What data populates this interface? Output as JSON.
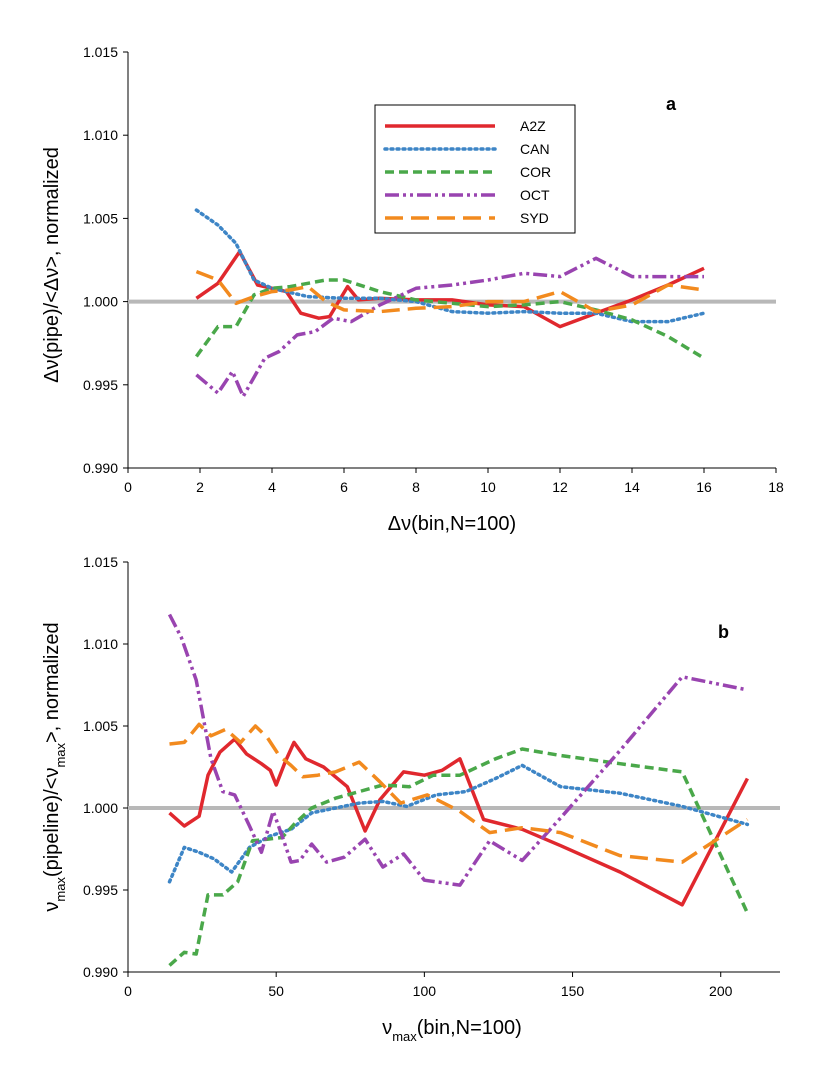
{
  "chart_data": [
    {
      "type": "line",
      "panel_label": "a",
      "xlabel": "Δν(bin,N=100)",
      "ylabel": "Δν(pipe)/<Δν>, normalized",
      "xlim": [
        0,
        18
      ],
      "ylim": [
        0.99,
        1.015
      ],
      "xticks": [
        "0",
        "2",
        "4",
        "6",
        "8",
        "10",
        "12",
        "14",
        "16",
        "18"
      ],
      "yticks": [
        "0.990",
        "0.995",
        "1.000",
        "1.005",
        "1.010",
        "1.015"
      ],
      "reference_line": 1.0,
      "legend_position": "top-center",
      "series": [
        {
          "name": "A2Z",
          "color": "#e0282e",
          "dash": "solid",
          "x": [
            1.9,
            2.5,
            3.1,
            3.6,
            4.4,
            4.8,
            5.3,
            5.6,
            6.1,
            6.4,
            7,
            8,
            9,
            10,
            11,
            12,
            13,
            14,
            15,
            16
          ],
          "y": [
            1.0002,
            1.0011,
            1.003,
            1.001,
            1.0006,
            0.9993,
            0.999,
            0.9991,
            1.0009,
            1.0001,
            1.0002,
            1.0001,
            1.0001,
            0.9998,
            0.9997,
            0.9985,
            0.9993,
            1.0001,
            1.001,
            1.002
          ]
        },
        {
          "name": "CAN",
          "color": "#3d85c6",
          "dash": "dot",
          "x": [
            1.9,
            2.5,
            3,
            3.5,
            4,
            5,
            6,
            7,
            8,
            9,
            10,
            11,
            12,
            13,
            14,
            15,
            16
          ],
          "y": [
            1.0055,
            1.0046,
            1.0035,
            1.0013,
            1.0008,
            1.0003,
            1.0002,
            1.0002,
            1.0,
            0.9994,
            0.9993,
            0.9994,
            0.9993,
            0.9993,
            0.9988,
            0.9988,
            0.9993
          ]
        },
        {
          "name": "COR",
          "color": "#4aa84a",
          "dash": "dash",
          "x": [
            1.9,
            2.5,
            3,
            3.5,
            4,
            4.5,
            5,
            5.5,
            6,
            7,
            8,
            9,
            10,
            11,
            12,
            13,
            14,
            15,
            16
          ],
          "y": [
            0.9967,
            0.9985,
            0.9985,
            1.0004,
            1.0008,
            1.0009,
            1.0011,
            1.0013,
            1.0013,
            1.0006,
            1.0001,
            0.9999,
            0.9997,
            0.9998,
            1.0,
            0.9995,
            0.9989,
            0.9979,
            0.9966
          ]
        },
        {
          "name": "OCT",
          "color": "#9944b0",
          "dash": "dashdotdot",
          "x": [
            1.9,
            2.5,
            2.9,
            3.2,
            3.8,
            4.2,
            4.7,
            5.2,
            5.7,
            6.2,
            7,
            8,
            9,
            10,
            11,
            12,
            13,
            14,
            15,
            16
          ],
          "y": [
            0.9956,
            0.9945,
            0.9958,
            0.9943,
            0.9966,
            0.997,
            0.998,
            0.9982,
            0.999,
            0.9988,
            0.9998,
            1.0008,
            1.001,
            1.0013,
            1.0017,
            1.0015,
            1.0026,
            1.0015,
            1.0015,
            1.0015
          ]
        },
        {
          "name": "SYD",
          "color": "#f28a1e",
          "dash": "longdash",
          "x": [
            1.9,
            2.5,
            3,
            3.5,
            4,
            4.5,
            5,
            5.5,
            6,
            7,
            8,
            9,
            10,
            11,
            12,
            13,
            14,
            15,
            16
          ],
          "y": [
            1.0018,
            1.0013,
            0.9999,
            1.0003,
            1.0006,
            1.0007,
            1.0009,
            1.0,
            0.9995,
            0.9994,
            0.9996,
            0.9997,
            1.0,
            1.0,
            1.0006,
            0.9994,
            0.9998,
            1.001,
            1.0007
          ]
        }
      ]
    },
    {
      "type": "line",
      "panel_label": "b",
      "xlabel_main": "ν",
      "xlabel_sub": "max",
      "xlabel_rest": "(bin,N=100)",
      "ylabel_pre": "ν",
      "ylabel_sub1": "max",
      "ylabel_mid": "(pipeline)/<ν",
      "ylabel_sub2": "max",
      "ylabel_post": ">, normalized",
      "xlim": [
        0,
        220
      ],
      "ylim": [
        0.99,
        1.015
      ],
      "xticks": [
        "0",
        "50",
        "100",
        "150",
        "200"
      ],
      "yticks": [
        "0.990",
        "0.995",
        "1.000",
        "1.005",
        "1.010",
        "1.015"
      ],
      "reference_line": 1.0,
      "series": [
        {
          "name": "A2Z",
          "color": "#e0282e",
          "dash": "solid",
          "x": [
            14,
            19,
            24,
            27,
            31,
            36,
            40,
            45,
            48,
            50,
            53,
            56,
            60,
            66,
            74,
            80,
            85,
            93,
            100,
            106,
            112,
            120,
            133,
            146,
            166,
            187,
            209
          ],
          "y": [
            0.9997,
            0.9989,
            0.9995,
            1.002,
            1.0034,
            1.0042,
            1.0033,
            1.0027,
            1.0023,
            1.0014,
            1.0028,
            1.004,
            1.003,
            1.0025,
            1.0013,
            0.9986,
            1.0005,
            1.0022,
            1.002,
            1.0023,
            1.003,
            0.9993,
            0.9987,
            0.9977,
            0.9961,
            0.9941,
            1.0018
          ]
        },
        {
          "name": "CAN",
          "color": "#3d85c6",
          "dash": "dot",
          "x": [
            14,
            19,
            24,
            29,
            35,
            41,
            48,
            55,
            62,
            70,
            78,
            86,
            94,
            104,
            114,
            124,
            133,
            146,
            166,
            187,
            209
          ],
          "y": [
            0.9955,
            0.9976,
            0.9973,
            0.9969,
            0.9961,
            0.9976,
            0.9983,
            0.9987,
            0.9997,
            1.0,
            1.0003,
            1.0004,
            1.0001,
            1.0008,
            1.001,
            1.0018,
            1.0026,
            1.0013,
            1.0009,
            1.0001,
            0.999
          ]
        },
        {
          "name": "COR",
          "color": "#4aa84a",
          "dash": "dash",
          "x": [
            14,
            19,
            23,
            27,
            32,
            37,
            42,
            47,
            52,
            56,
            62,
            70,
            78,
            86,
            95,
            103,
            112,
            124,
            133,
            146,
            166,
            187,
            209
          ],
          "y": [
            0.9904,
            0.9912,
            0.9911,
            0.9947,
            0.9947,
            0.9955,
            0.998,
            0.9981,
            0.9982,
            0.999,
            1.0,
            1.0006,
            1.001,
            1.0014,
            1.0013,
            1.002,
            1.002,
            1.003,
            1.0036,
            1.0032,
            1.0027,
            1.0022,
            0.9936
          ]
        },
        {
          "name": "OCT",
          "color": "#9944b0",
          "dash": "dashdotdot",
          "x": [
            14,
            18,
            23,
            28,
            32,
            36,
            41,
            45,
            49,
            52,
            55,
            58,
            62,
            67,
            73,
            80,
            86,
            93,
            100,
            112,
            122,
            133,
            146,
            166,
            187,
            209
          ],
          "y": [
            1.0118,
            1.0104,
            1.0078,
            1.003,
            1.001,
            1.0008,
            0.9989,
            0.9973,
            0.9998,
            0.9983,
            0.9967,
            0.9968,
            0.9978,
            0.9967,
            0.997,
            0.9981,
            0.9964,
            0.9972,
            0.9956,
            0.9953,
            0.998,
            0.9968,
            0.9994,
            1.0035,
            1.008,
            1.0072
          ]
        },
        {
          "name": "SYD",
          "color": "#f28a1e",
          "dash": "longdash",
          "x": [
            14,
            19,
            24,
            28,
            33,
            38,
            43,
            47,
            51,
            55,
            59,
            64,
            70,
            78,
            85,
            92,
            101,
            112,
            122,
            133,
            146,
            166,
            187,
            209
          ],
          "y": [
            1.0039,
            1.004,
            1.0051,
            1.0044,
            1.0048,
            1.004,
            1.005,
            1.0043,
            1.0032,
            1.0026,
            1.0019,
            1.002,
            1.0022,
            1.0028,
            1.0016,
            1.0003,
            1.0008,
            0.9998,
            0.9985,
            0.9988,
            0.9985,
            0.9971,
            0.9967,
            0.9993
          ]
        }
      ]
    }
  ]
}
